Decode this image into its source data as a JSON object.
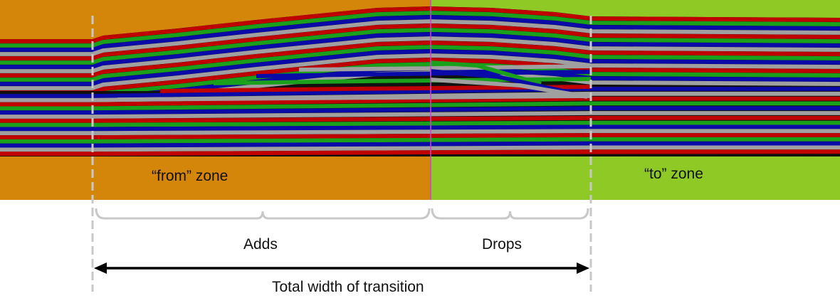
{
  "zones": {
    "from_label": "“from” zone",
    "to_label": "“to” zone",
    "from_color": "#d4860a",
    "to_color": "#8fc926",
    "boundary_color": "#cc44cc"
  },
  "annotations": {
    "adds_label": "Adds",
    "drops_label": "Drops",
    "total_label": "Total width of transition"
  },
  "layer_colors": [
    "#c00000",
    "#1aa01a",
    "#0a0aa8",
    "#a0a0a0"
  ],
  "guide_color": "#c8c8c8",
  "arrow_color": "#000000"
}
